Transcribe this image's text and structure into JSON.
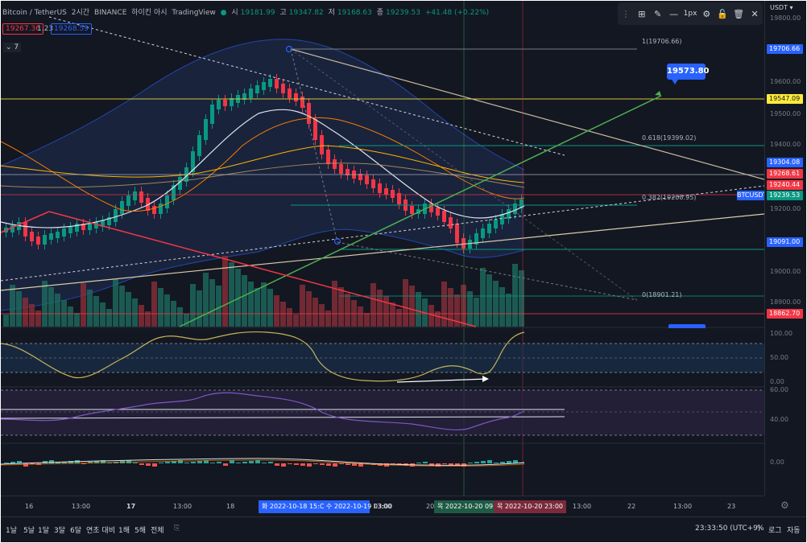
{
  "header": {
    "symbol": "Bitcoin / TetherUS",
    "interval": "2시간",
    "exchange": "BINANCE",
    "chart_name": "하이킨 아시",
    "source": "TradingView",
    "open_label": "시",
    "open": "19181.99",
    "high_label": "고",
    "high": "19347.82",
    "low_label": "저",
    "low": "19168.63",
    "close_label": "종",
    "close": "19239.53",
    "change": "+41.48 (+0.22%)",
    "sell_price": "19267.36",
    "spread": "1.23",
    "buy_price": "19268.59",
    "indicators_count": "7"
  },
  "toolbar": {
    "stroke_width": "1px",
    "icons": [
      "layout-icon",
      "pencil-icon",
      "line-style-icon",
      "settings-icon",
      "lock-icon",
      "trash-icon",
      "close-icon"
    ]
  },
  "price_axis": {
    "currency": "USDT",
    "ticks": [
      "19800.00",
      "19700.00",
      "19600.00",
      "19500.00",
      "19400.00",
      "19300.00",
      "19200.00",
      "19100.00",
      "19000.00",
      "18900.00",
      "18800.00"
    ],
    "tags": [
      {
        "label": "19706.66",
        "color": "#2962ff"
      },
      {
        "label": "19547.09",
        "color": "#ffeb3b"
      },
      {
        "label": "19304.08",
        "color": "#2962ff"
      },
      {
        "label": "19268.61",
        "color": "#f23645"
      },
      {
        "label": "19240.44",
        "color": "#f23645"
      },
      {
        "label": "19239.53",
        "color": "#089981"
      },
      {
        "label": "19091.00",
        "color": "#2962ff"
      },
      {
        "label": "18862.70",
        "color": "#f23645"
      }
    ],
    "symbol_tag": "BTCUSDT"
  },
  "annotations": {
    "target_price": "19573.80",
    "fib_1": "1(19706.66)",
    "fib_0618": "0.618(19399.02)",
    "fib_0382": "0.382(19208.95)",
    "fib_0": "0(18901.21)"
  },
  "oscillator_1": {
    "ticks": [
      "100.00",
      "50.00",
      "0.00"
    ]
  },
  "oscillator_2": {
    "ticks": [
      "60.00",
      "40.00"
    ]
  },
  "oscillator_3": {
    "ticks": [
      "0.00"
    ]
  },
  "time_axis": {
    "labels": [
      "16",
      "13:00",
      "17",
      "13:00",
      "18",
      "13:00",
      "20",
      "13:00",
      "22",
      "13:00",
      "23"
    ],
    "badge_1": "화 2022-10-18   15:C",
    "badge_2": "수 2022-10-19   03:00",
    "badge_3": "목 2022-10-20   09:00",
    "badge_4": "목 2022-10-20   23:00"
  },
  "bottom_bar": {
    "ranges": [
      "1날",
      "5날",
      "1달",
      "3달",
      "6달",
      "연초 대비",
      "1해",
      "5해",
      "전체"
    ],
    "time": "23:33:50 (UTC+9)",
    "percent": "%",
    "log": "로그",
    "auto": "자동"
  }
}
